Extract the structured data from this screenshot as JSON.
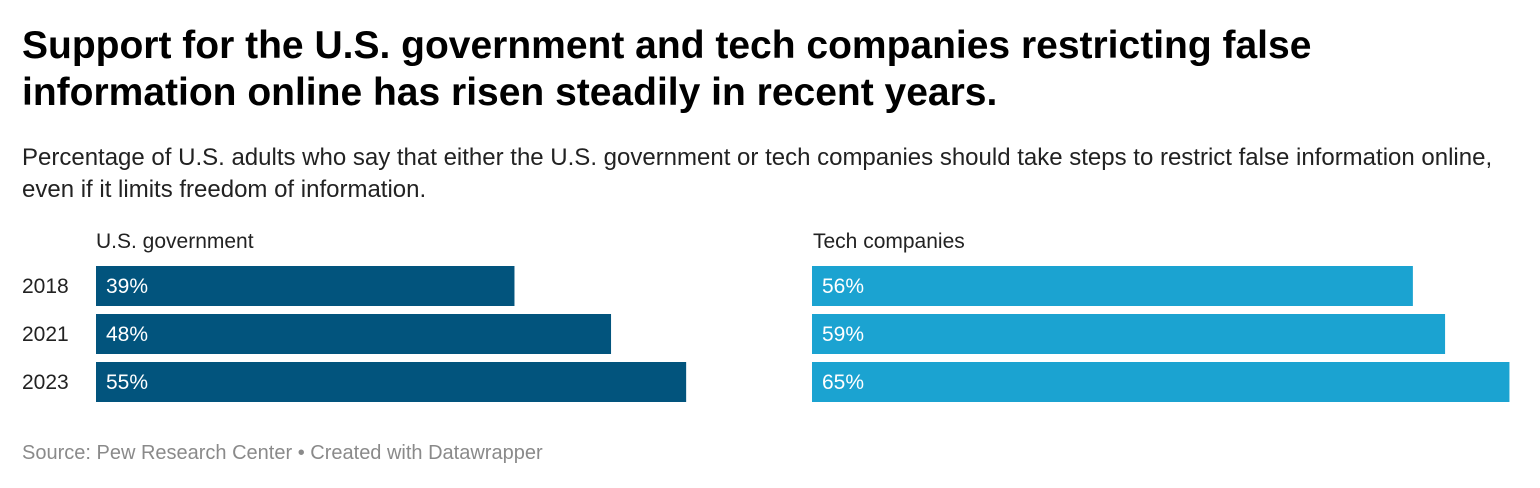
{
  "title": "Support for the U.S. government and tech companies restricting false information online has risen steadily in recent years.",
  "subtitle": "Percentage of U.S. adults who say that either the U.S. government or tech companies should take steps to restrict false information online, even if it limits freedom of information.",
  "footer": {
    "source": "Source: Pew Research Center",
    "separator": "•",
    "credit": "Created with Datawrapper"
  },
  "chart_data": {
    "type": "bar",
    "orientation": "horizontal",
    "categories": [
      "2018",
      "2021",
      "2023"
    ],
    "unit": "%",
    "panels": [
      {
        "name": "U.S. government",
        "color": "#02547d",
        "values": [
          39,
          48,
          55
        ]
      },
      {
        "name": "Tech companies",
        "color": "#1ba3d1",
        "values": [
          56,
          59,
          65
        ]
      }
    ],
    "data_labels": true,
    "grid": false
  }
}
